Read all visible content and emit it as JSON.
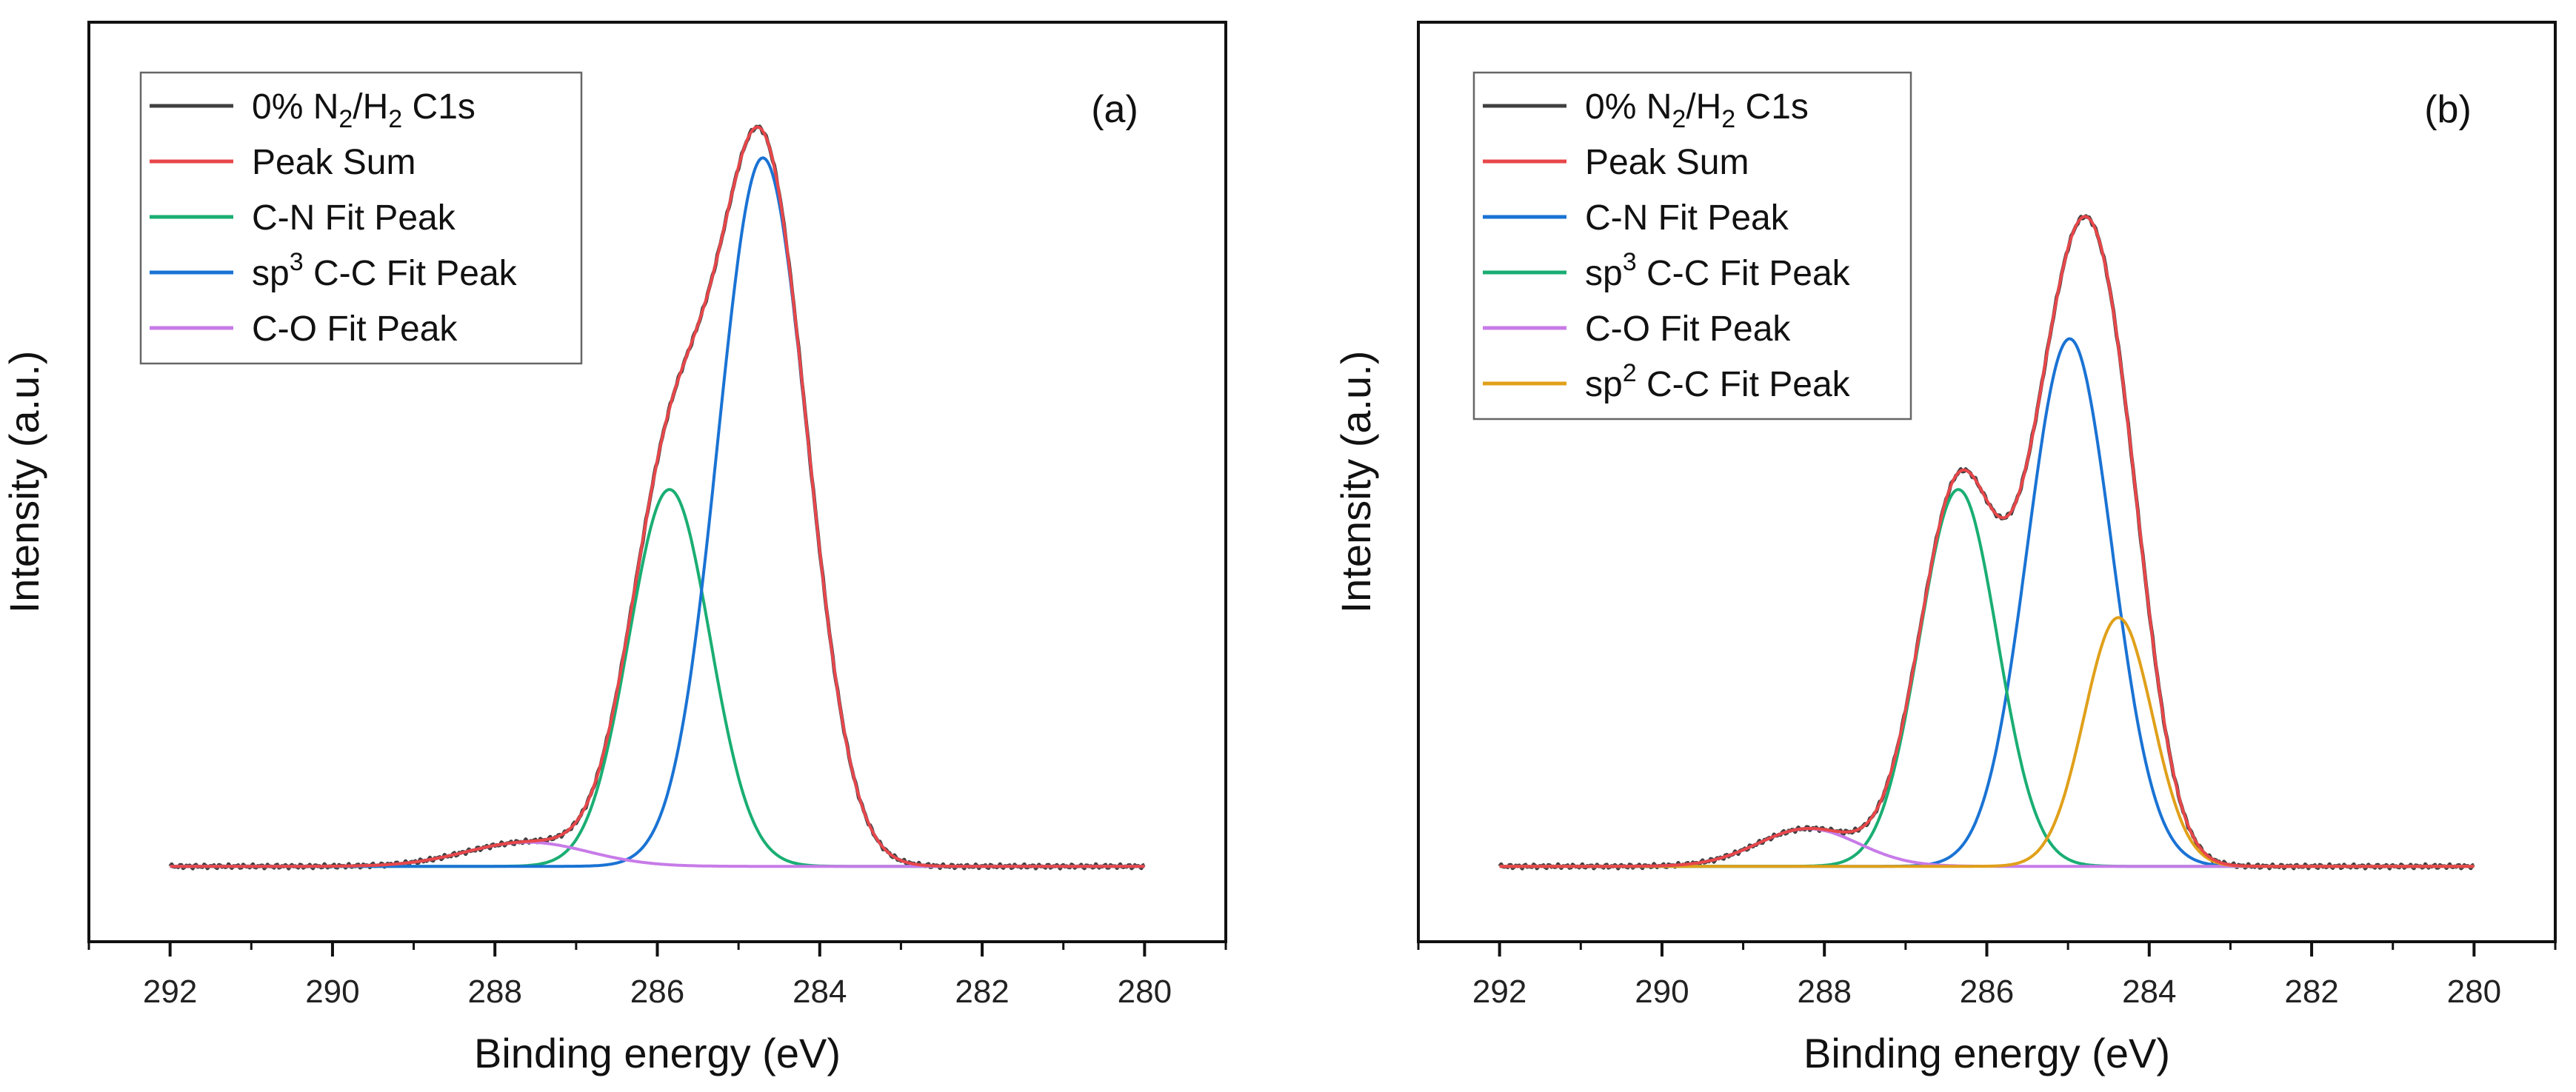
{
  "chart_data": [
    {
      "panel": "(a)",
      "type": "line",
      "xlabel": "Binding energy (eV)",
      "ylabel": "Intensity (a.u.)",
      "xlim": [
        293,
        279
      ],
      "xticks": [
        "292",
        "290",
        "288",
        "286",
        "284",
        "282",
        "280"
      ],
      "ylim": [
        -0.1,
        1.12
      ],
      "legend_position": "top-left",
      "data_range": [
        292,
        280
      ],
      "series": [
        {
          "name": "0% N2/H2 C1s",
          "legend": {
            "pre": "0% N",
            "sub1": "2",
            "mid": "/H",
            "sub2": "2",
            "post": " C1s"
          },
          "color": "#404040",
          "kind": "data",
          "noise": 0.003
        },
        {
          "name": "Peak Sum",
          "legend": {
            "pre": "Peak Sum"
          },
          "color": "#e8474a",
          "kind": "sum"
        },
        {
          "name": "C-N Fit Peak",
          "legend": {
            "pre": "C-N Fit Peak"
          },
          "color": "#1aae73",
          "kind": "peak",
          "center": 285.85,
          "amp": 0.5,
          "sigma": 0.5
        },
        {
          "name": "sp3 C-C Fit Peak",
          "legend": {
            "pre": "sp",
            "sup": "3",
            "post": " C-C Fit Peak"
          },
          "color": "#1a73d4",
          "kind": "peak",
          "center": 284.7,
          "amp": 0.94,
          "sigma": 0.55
        },
        {
          "name": "C-O Fit Peak",
          "legend": {
            "pre": "C-O Fit Peak"
          },
          "color": "#c77be8",
          "kind": "peak",
          "center": 287.6,
          "amp": 0.032,
          "sigma": 0.75
        }
      ]
    },
    {
      "panel": "(b)",
      "type": "line",
      "xlabel": "Binding energy (eV)",
      "ylabel": "Intensity (a.u.)",
      "xlim": [
        293,
        279
      ],
      "xticks": [
        "292",
        "290",
        "288",
        "286",
        "284",
        "282",
        "280"
      ],
      "ylim": [
        -0.1,
        1.12
      ],
      "legend_position": "top-left",
      "data_range": [
        292,
        280
      ],
      "series": [
        {
          "name": "0% N2/H2 C1s",
          "legend": {
            "pre": "0% N",
            "sub1": "2",
            "mid": "/H",
            "sub2": "2",
            "post": " C1s"
          },
          "color": "#404040",
          "kind": "data",
          "noise": 0.003
        },
        {
          "name": "Peak Sum",
          "legend": {
            "pre": "Peak Sum"
          },
          "color": "#e8474a",
          "kind": "sum"
        },
        {
          "name": "C-N Fit Peak",
          "legend": {
            "pre": "C-N Fit Peak"
          },
          "color": "#1a73d4",
          "kind": "peak",
          "center": 284.98,
          "amp": 0.7,
          "sigma": 0.52
        },
        {
          "name": "sp3 C-C Fit Peak",
          "legend": {
            "pre": "sp",
            "sup": "3",
            "post": " C-C Fit Peak"
          },
          "color": "#1aae73",
          "kind": "peak",
          "center": 286.35,
          "amp": 0.5,
          "sigma": 0.48
        },
        {
          "name": "C-O Fit Peak",
          "legend": {
            "pre": "C-O Fit Peak"
          },
          "color": "#c77be8",
          "kind": "peak",
          "center": 288.2,
          "amp": 0.05,
          "sigma": 0.62
        },
        {
          "name": "sp2 C-C Fit Peak",
          "legend": {
            "pre": "sp",
            "sup": "2",
            "post": " C-C Fit Peak"
          },
          "color": "#e0a01a",
          "kind": "peak",
          "center": 284.38,
          "amp": 0.33,
          "sigma": 0.42
        }
      ]
    }
  ]
}
